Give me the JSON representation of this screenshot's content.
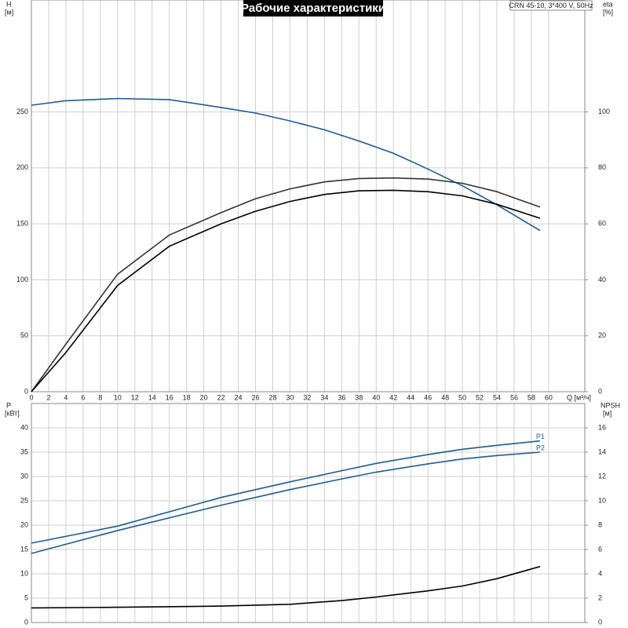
{
  "chart_data": [
    {
      "type": "line",
      "title": "Рабочие характеристики",
      "subtitle": "CRN 45-10, 3*400 V, 50Hz",
      "xlabel": "Q [м³/ч]",
      "ylabel": "H",
      "ylabel_unit": "[м]",
      "y2label": "eta",
      "y2label_unit": "[%]",
      "x": [
        0,
        4,
        10,
        16,
        22,
        26,
        30,
        34,
        38,
        42,
        46,
        50,
        54,
        59
      ],
      "series": [
        {
          "color": "#1f5a96",
          "values": [
            256,
            260,
            262,
            261,
            254,
            249,
            242,
            234,
            224,
            213,
            199,
            184,
            167,
            144
          ]
        },
        {
          "color": "#333333",
          "axis": "y2",
          "values": [
            0,
            17,
            42,
            56,
            64,
            69,
            72.5,
            75,
            76.2,
            76.4,
            76,
            74.5,
            71.5,
            66
          ]
        },
        {
          "color": "#000000",
          "axis": "y2",
          "values": [
            0,
            14,
            38,
            52,
            60,
            64.5,
            68,
            70.5,
            71.8,
            72,
            71.5,
            70,
            67,
            62
          ]
        }
      ],
      "xlim": [
        0,
        64.2
      ],
      "xticks": [
        0,
        2,
        4,
        6,
        8,
        10,
        12,
        14,
        16,
        18,
        20,
        22,
        24,
        26,
        28,
        30,
        32,
        34,
        36,
        38,
        40,
        42,
        44,
        46,
        48,
        50,
        52,
        54,
        56,
        58,
        60
      ],
      "ylim": [
        0,
        350
      ],
      "yticks": [
        0,
        50,
        100,
        150,
        200,
        250
      ],
      "y2lim": [
        0,
        140
      ],
      "y2ticks": [
        0,
        20,
        40,
        60,
        80,
        100
      ],
      "grid": true
    },
    {
      "type": "line",
      "ylabel": "P",
      "ylabel_unit": "[кВт]",
      "y2label": "NPSH",
      "y2label_unit": "[м]",
      "x": [
        0,
        10,
        22,
        30,
        36,
        40,
        46,
        50,
        54,
        59
      ],
      "series": [
        {
          "name": "P1",
          "color": "#1f5a96",
          "values": [
            16.3,
            19.8,
            25.7,
            28.9,
            31.2,
            32.7,
            34.5,
            35.6,
            36.4,
            37.3
          ]
        },
        {
          "name": "P2",
          "color": "#1f5a96",
          "values": [
            14.2,
            18.9,
            24.1,
            27.3,
            29.5,
            30.9,
            32.6,
            33.6,
            34.3,
            35
          ]
        },
        {
          "color": "#000000",
          "axis": "y2",
          "values": [
            1.2,
            1.25,
            1.35,
            1.5,
            1.8,
            2.1,
            2.6,
            3.0,
            3.6,
            4.6
          ]
        }
      ],
      "xlim": [
        0,
        64.2
      ],
      "ylim": [
        0,
        45
      ],
      "yticks": [
        0,
        5,
        10,
        15,
        20,
        25,
        30,
        35,
        40
      ],
      "y2lim": [
        0,
        18
      ],
      "y2ticks": [
        0,
        2,
        4,
        6,
        8,
        10,
        12,
        14,
        16
      ],
      "grid": true
    }
  ]
}
